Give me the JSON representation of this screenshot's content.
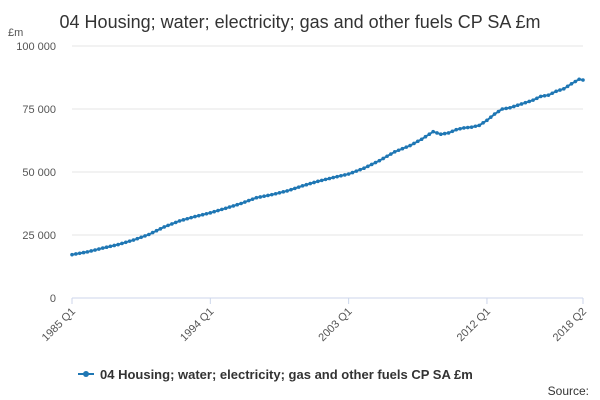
{
  "chart_data": {
    "type": "line",
    "title": "04 Housing; water; electricity; gas and other fuels CP SA £m",
    "ylabel": "£m",
    "xlabel": "",
    "ylim": [
      0,
      100000
    ],
    "yticks": [
      0,
      25000,
      50000,
      75000,
      100000
    ],
    "ytick_labels": [
      "0",
      "25 000",
      "50 000",
      "75 000",
      "100 000"
    ],
    "xticks": [
      {
        "label": "1985 Q1",
        "x": 1985.0
      },
      {
        "label": "1994 Q1",
        "x": 1994.0
      },
      {
        "label": "2003 Q1",
        "x": 2003.0
      },
      {
        "label": "2012 Q1",
        "x": 2012.0
      },
      {
        "label": "2018 Q2",
        "x": 2018.25
      }
    ],
    "xlim": [
      1985.0,
      2018.25
    ],
    "series": [
      {
        "name": "04 Housing; water; electricity; gas and other fuels CP SA £m",
        "color": "#1f77b4",
        "anchors": [
          [
            1985.0,
            17200
          ],
          [
            1986.0,
            18300
          ],
          [
            1987.0,
            19800
          ],
          [
            1988.0,
            21200
          ],
          [
            1989.0,
            23000
          ],
          [
            1990.0,
            25200
          ],
          [
            1991.0,
            28200
          ],
          [
            1992.0,
            30600
          ],
          [
            1993.0,
            32300
          ],
          [
            1994.0,
            33800
          ],
          [
            1995.0,
            35600
          ],
          [
            1996.0,
            37500
          ],
          [
            1997.0,
            39800
          ],
          [
            1998.0,
            41000
          ],
          [
            1999.0,
            42500
          ],
          [
            2000.0,
            44500
          ],
          [
            2001.0,
            46300
          ],
          [
            2002.0,
            47800
          ],
          [
            2003.0,
            49200
          ],
          [
            2004.0,
            51500
          ],
          [
            2005.0,
            54500
          ],
          [
            2006.0,
            58000
          ],
          [
            2007.0,
            60500
          ],
          [
            2007.75,
            63000
          ],
          [
            2008.5,
            66000
          ],
          [
            2009.0,
            65000
          ],
          [
            2009.5,
            65500
          ],
          [
            2010.0,
            66800
          ],
          [
            2010.5,
            67500
          ],
          [
            2011.0,
            67800
          ],
          [
            2011.5,
            68500
          ],
          [
            2012.0,
            70500
          ],
          [
            2012.5,
            73000
          ],
          [
            2013.0,
            75000
          ],
          [
            2013.5,
            75500
          ],
          [
            2014.0,
            76500
          ],
          [
            2014.5,
            77500
          ],
          [
            2015.0,
            78500
          ],
          [
            2015.5,
            80000
          ],
          [
            2016.0,
            80500
          ],
          [
            2016.5,
            82000
          ],
          [
            2017.0,
            83000
          ],
          [
            2017.5,
            85000
          ],
          [
            2018.0,
            86800
          ],
          [
            2018.25,
            86500
          ]
        ]
      }
    ],
    "legend_position": "bottom",
    "grid": true
  },
  "footer": {
    "source_label": "Source:"
  }
}
